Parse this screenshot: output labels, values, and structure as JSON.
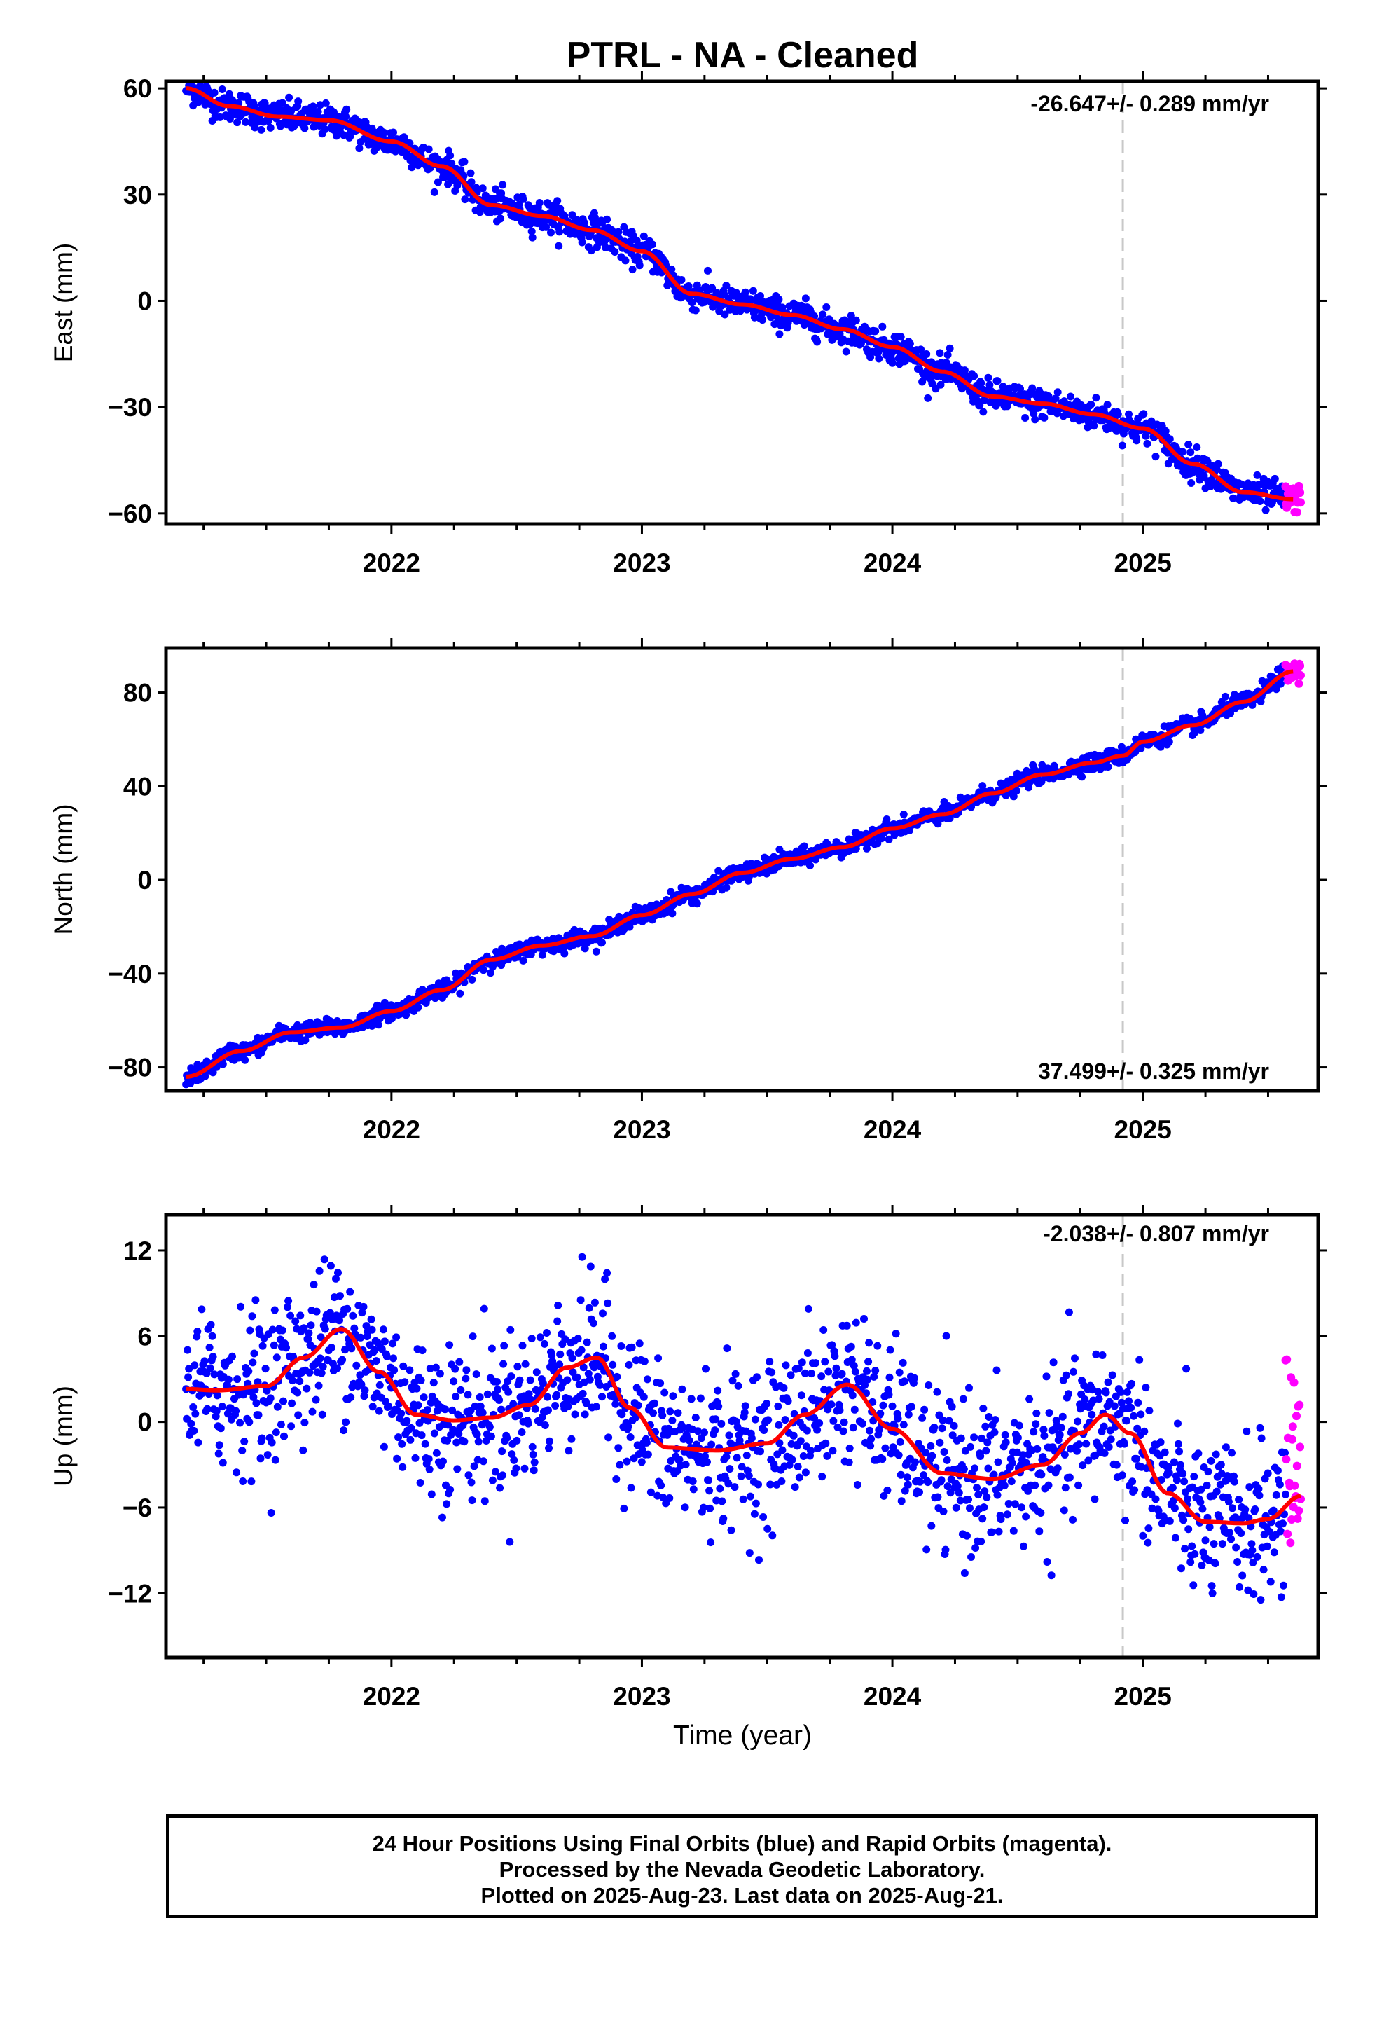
{
  "title": "PTRL  - NA - Cleaned",
  "xlabel": "Time (year)",
  "footer": {
    "line1": "24 Hour Positions Using Final Orbits (blue) and Rapid Orbits (magenta).",
    "line2": "Processed by the Nevada Geodetic Laboratory.",
    "line3": "Plotted on 2025-Aug-23. Last data on 2025-Aug-21."
  },
  "colors": {
    "final": "#0000ff",
    "rapid": "#ff00ff",
    "fit": "#ff0000",
    "marker_line": "#c8c8c8",
    "frame": "#000000"
  },
  "chart_data": [
    {
      "type": "scatter",
      "ylabel": "East (mm)",
      "rate_label": "-26.647+/- 0.289 mm/yr",
      "rate_position": "top-right",
      "xlim": [
        2021.1,
        2025.7
      ],
      "ylim": [
        -63,
        62
      ],
      "x_ticks": [
        2022,
        2023,
        2024,
        2025
      ],
      "y_ticks": [
        60,
        30,
        0,
        -30,
        -60
      ],
      "marker_line_x": 2024.92,
      "series": [
        {
          "role": "fit",
          "x": [
            2021.18,
            2021.35,
            2021.55,
            2021.75,
            2022.0,
            2022.2,
            2022.4,
            2022.6,
            2022.8,
            2023.0,
            2023.2,
            2023.4,
            2023.6,
            2023.8,
            2024.0,
            2024.2,
            2024.4,
            2024.6,
            2024.8,
            2025.0,
            2025.2,
            2025.4,
            2025.6
          ],
          "y": [
            60,
            55,
            52,
            51,
            45,
            38,
            27,
            24,
            20,
            14,
            2,
            -1,
            -4,
            -8,
            -13,
            -20,
            -27,
            -29,
            -32,
            -36,
            -46,
            -54,
            -56
          ]
        },
        {
          "role": "final",
          "x_range": [
            2021.18,
            2025.57
          ],
          "noise": 2.2
        },
        {
          "role": "rapid",
          "x_range": [
            2025.57,
            2025.63
          ],
          "noise": 2.0
        }
      ]
    },
    {
      "type": "scatter",
      "ylabel": "North (mm)",
      "rate_label": "37.499+/- 0.325 mm/yr",
      "rate_position": "bottom-right",
      "xlim": [
        2021.1,
        2025.7
      ],
      "ylim": [
        -90,
        99
      ],
      "x_ticks": [
        2022,
        2023,
        2024,
        2025
      ],
      "y_ticks": [
        80,
        40,
        0,
        -40,
        -80
      ],
      "marker_line_x": 2024.92,
      "series": [
        {
          "role": "fit",
          "x": [
            2021.18,
            2021.4,
            2021.6,
            2021.8,
            2022.0,
            2022.2,
            2022.4,
            2022.6,
            2022.8,
            2023.0,
            2023.2,
            2023.4,
            2023.6,
            2023.8,
            2024.0,
            2024.2,
            2024.4,
            2024.6,
            2024.8,
            2024.92,
            2025.0,
            2025.2,
            2025.4,
            2025.6
          ],
          "y": [
            -84,
            -73,
            -65,
            -63,
            -56,
            -47,
            -34,
            -28,
            -24,
            -15,
            -6,
            3,
            9,
            14,
            22,
            28,
            37,
            45,
            50,
            53,
            59,
            66,
            76,
            89
          ]
        },
        {
          "role": "final",
          "x_range": [
            2021.18,
            2025.57
          ],
          "noise": 1.8
        },
        {
          "role": "rapid",
          "x_range": [
            2025.57,
            2025.63
          ],
          "noise": 2.0
        }
      ]
    },
    {
      "type": "scatter",
      "ylabel": "Up (mm)",
      "rate_label": "-2.038+/- 0.807 mm/yr",
      "rate_position": "top-right",
      "xlim": [
        2021.1,
        2025.7
      ],
      "ylim": [
        -16.5,
        14.5
      ],
      "x_ticks": [
        2022,
        2023,
        2024,
        2025
      ],
      "y_ticks": [
        12,
        6,
        0,
        -6,
        -12
      ],
      "marker_line_x": 2024.92,
      "series": [
        {
          "role": "fit",
          "x": [
            2021.18,
            2021.3,
            2021.5,
            2021.65,
            2021.8,
            2021.95,
            2022.1,
            2022.25,
            2022.4,
            2022.55,
            2022.7,
            2022.82,
            2022.95,
            2023.1,
            2023.3,
            2023.5,
            2023.65,
            2023.82,
            2024.0,
            2024.2,
            2024.4,
            2024.6,
            2024.75,
            2024.85,
            2024.95,
            2025.1,
            2025.25,
            2025.4,
            2025.5,
            2025.63
          ],
          "y": [
            2.3,
            2.2,
            2.5,
            4.5,
            6.5,
            3.5,
            0.5,
            0.1,
            0.3,
            1.2,
            3.8,
            4.5,
            1.0,
            -1.8,
            -2.0,
            -1.5,
            0.5,
            2.6,
            -0.5,
            -3.6,
            -4.0,
            -3.0,
            -0.8,
            0.5,
            -0.8,
            -5.0,
            -7.0,
            -7.1,
            -6.8,
            -5.2
          ]
        },
        {
          "role": "final",
          "x_range": [
            2021.18,
            2025.57
          ],
          "noise": 2.7
        },
        {
          "role": "rapid",
          "x_range": [
            2025.57,
            2025.63
          ],
          "noise": 3.0
        }
      ]
    }
  ]
}
